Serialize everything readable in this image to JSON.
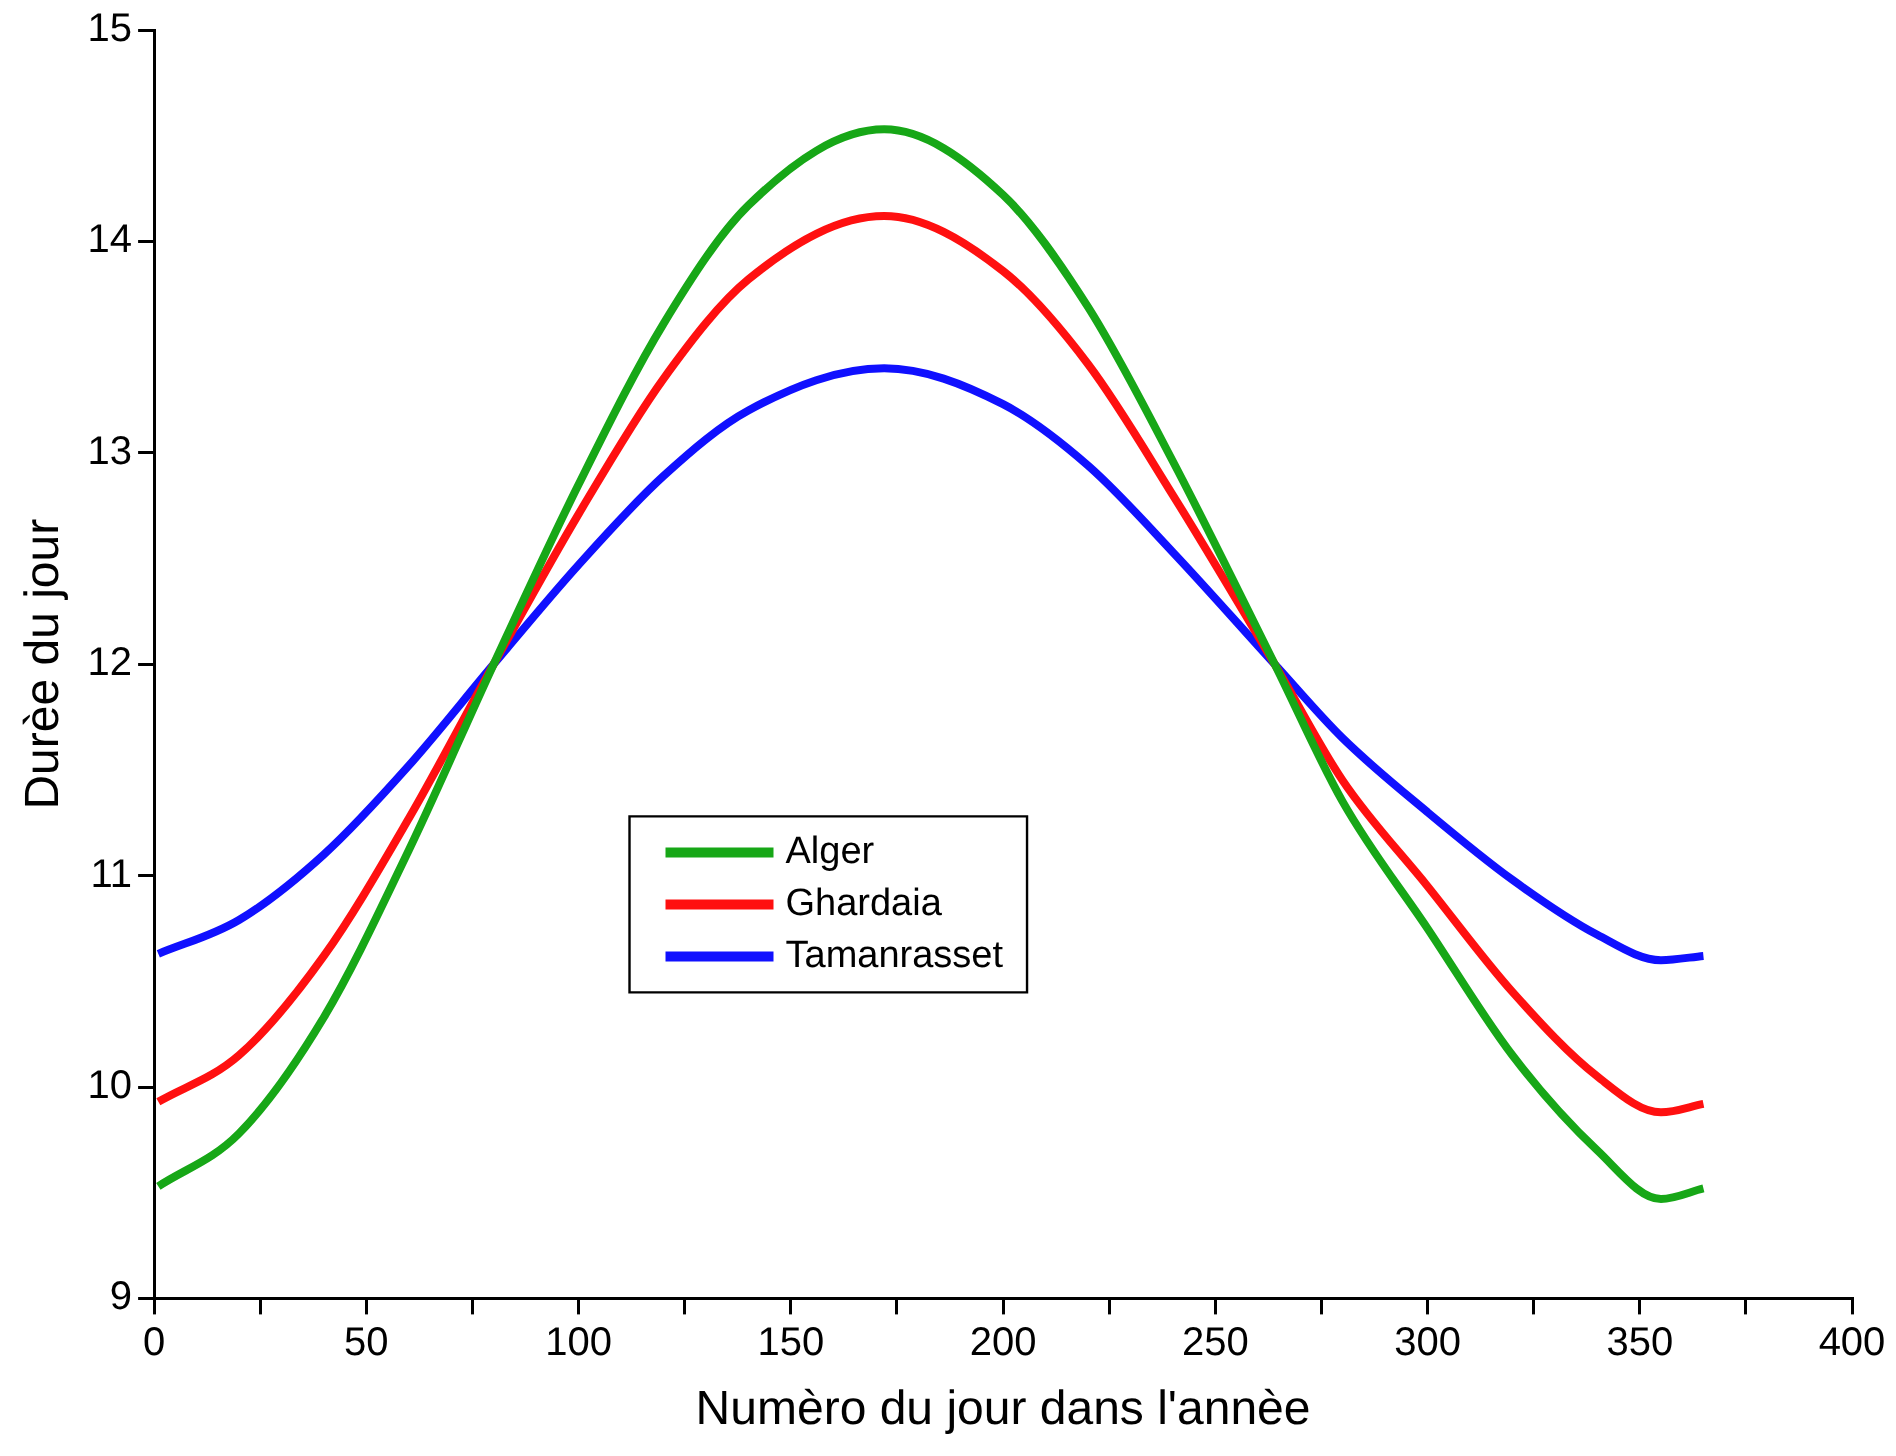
{
  "chart_data": {
    "type": "line",
    "xlabel": "Numèro du jour dans l'annèe",
    "ylabel": "Durèe du jour",
    "x": [
      1,
      20,
      40,
      60,
      80,
      100,
      120,
      140,
      172,
      200,
      220,
      240,
      264,
      280,
      300,
      320,
      340,
      355,
      365
    ],
    "series": [
      {
        "name": "Alger",
        "color": "#17a717",
        "values": [
          9.53,
          9.78,
          10.33,
          11.12,
          12,
          12.85,
          13.61,
          14.17,
          14.53,
          14.22,
          13.69,
          12.96,
          12,
          11.35,
          10.75,
          10.15,
          9.7,
          9.47,
          9.52
        ]
      },
      {
        "name": "Ghardaia",
        "color": "#ff1010",
        "values": [
          9.93,
          10.15,
          10.62,
          11.27,
          12,
          12.71,
          13.35,
          13.82,
          14.12,
          13.86,
          13.42,
          12.8,
          12,
          11.45,
          10.95,
          10.45,
          10.05,
          9.88,
          9.92
        ]
      },
      {
        "name": "Tamanrasset",
        "color": "#1010ff",
        "values": [
          10.63,
          10.79,
          11.1,
          11.52,
          12,
          12.47,
          12.89,
          13.2,
          13.4,
          13.23,
          12.94,
          12.53,
          12,
          11.65,
          11.3,
          10.98,
          10.72,
          10.6,
          10.62
        ]
      }
    ],
    "xlim": [
      0,
      400
    ],
    "xticks": [
      0,
      {
        "value": 25,
        "label": null
      },
      50,
      {
        "value": 75,
        "label": null
      },
      100,
      {
        "value": 125,
        "label": null
      },
      150,
      {
        "value": 175,
        "label": null
      },
      200,
      {
        "value": 225,
        "label": null
      },
      250,
      {
        "value": 275,
        "label": null
      },
      300,
      {
        "value": 325,
        "label": null
      },
      350,
      {
        "value": 375,
        "label": null
      },
      400
    ],
    "ylim": [
      9,
      15
    ],
    "yticks": [
      9,
      10,
      11,
      12,
      13,
      14,
      15
    ],
    "grid": false,
    "legend": "center left",
    "marker": "none",
    "line_style": "solid"
  }
}
